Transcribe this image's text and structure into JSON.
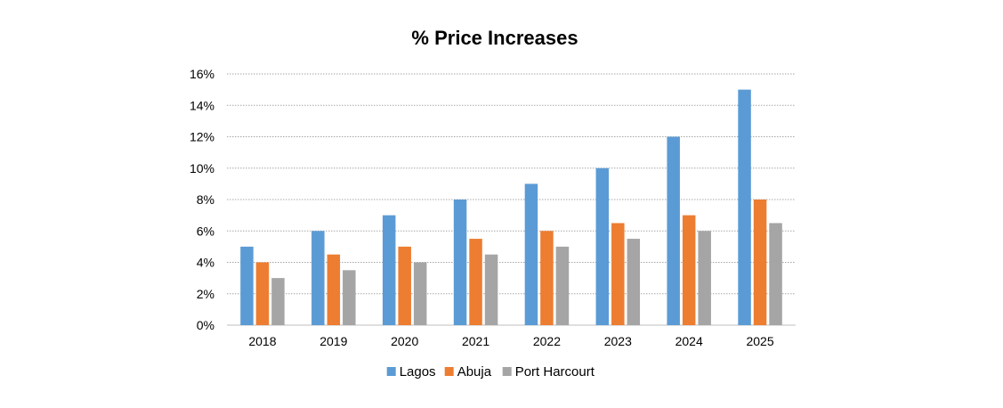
{
  "chart_data": {
    "type": "bar",
    "title": "% Price Increases",
    "xlabel": "",
    "ylabel": "",
    "categories": [
      "2018",
      "2019",
      "2020",
      "2021",
      "2022",
      "2023",
      "2024",
      "2025"
    ],
    "series": [
      {
        "name": "Lagos",
        "color": "#5b9bd5",
        "values": [
          5,
          6,
          7,
          8,
          9,
          10,
          12,
          15
        ]
      },
      {
        "name": "Abuja",
        "color": "#ed7d31",
        "values": [
          4,
          4.5,
          5,
          5.5,
          6,
          6.5,
          7,
          8
        ]
      },
      {
        "name": "Port Harcourt",
        "color": "#a5a5a5",
        "values": [
          3,
          3.5,
          4,
          4.5,
          5,
          5.5,
          6,
          6.5
        ]
      }
    ],
    "ylim": [
      0,
      16
    ],
    "yticks": [
      0,
      2,
      4,
      6,
      8,
      10,
      12,
      14,
      16
    ],
    "ytick_suffix": "%",
    "grid": true,
    "legend": "bottom"
  }
}
